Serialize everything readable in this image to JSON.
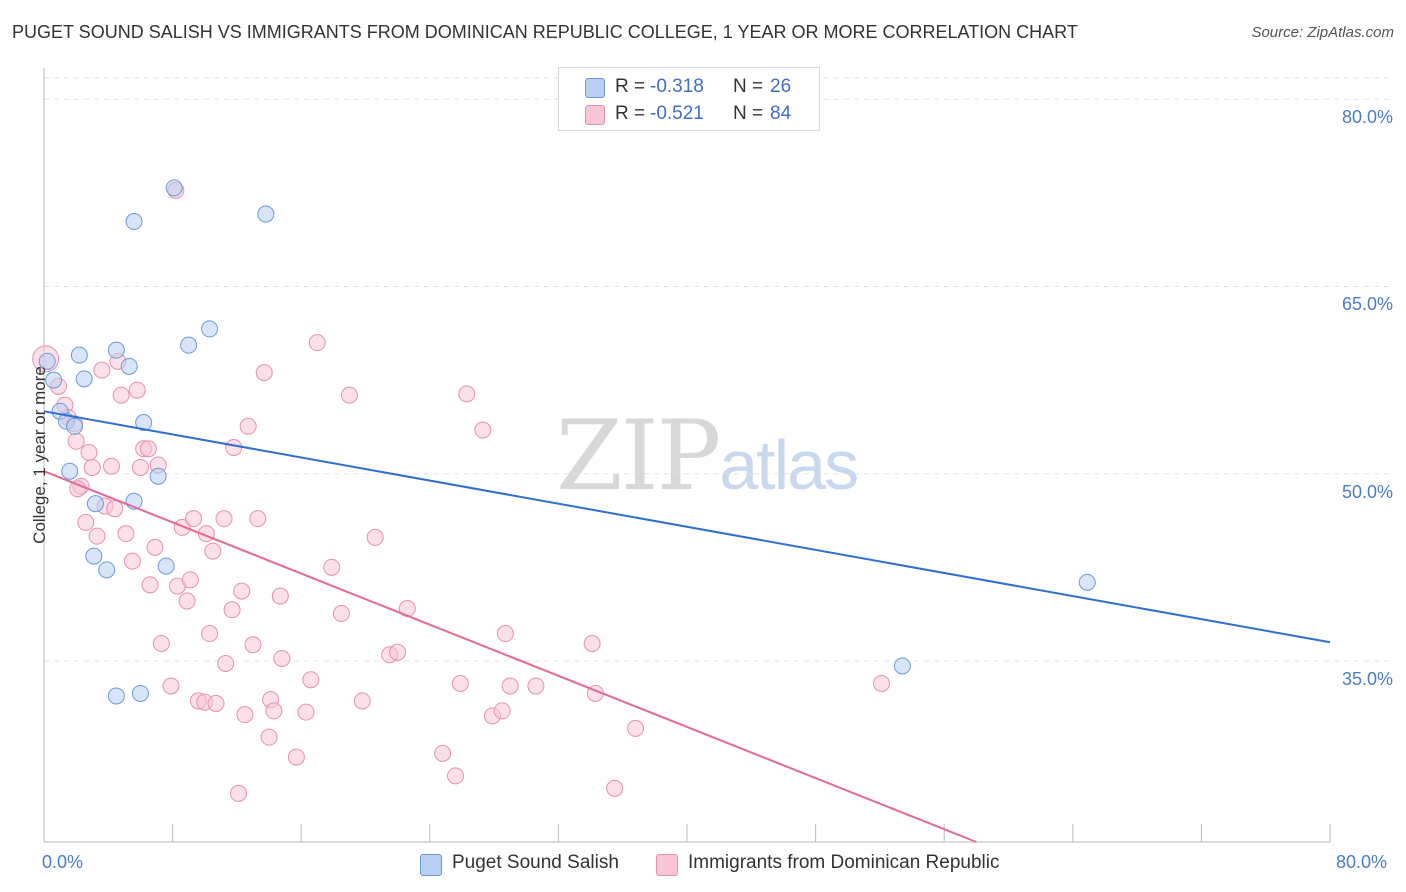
{
  "title": "PUGET SOUND SALISH VS IMMIGRANTS FROM DOMINICAN REPUBLIC COLLEGE, 1 YEAR OR MORE CORRELATION CHART",
  "source": "Source: ZipAtlas.com",
  "watermark": {
    "zip": "ZIP",
    "atlas": "atlas"
  },
  "colors": {
    "blue_fill": "#b8d0f3",
    "blue_stroke": "#6b9ad8",
    "blue_line": "#2f6fd0",
    "pink_fill": "#f8c6d6",
    "pink_stroke": "#e690b0",
    "pink_line": "#e06a98",
    "grid": "#e3e3e3",
    "axis_text": "#4a7cc7"
  },
  "legend": {
    "rows": [
      {
        "r_label": "R = ",
        "r_value": "-0.318",
        "n_label": "N = ",
        "n_value": "26"
      },
      {
        "r_label": "R = ",
        "r_value": "-0.521",
        "n_label": "N = ",
        "n_value": "84"
      }
    ]
  },
  "chart_data": {
    "type": "scatter",
    "title": "PUGET SOUND SALISH VS IMMIGRANTS FROM DOMINICAN REPUBLIC COLLEGE, 1 YEAR OR MORE CORRELATION CHART",
    "xlabel": "",
    "ylabel": "College, 1 year or more",
    "xlim": [
      0,
      80
    ],
    "ylim": [
      20.5,
      82.5
    ],
    "x_tick_labels": [
      "0.0%",
      "80.0%"
    ],
    "y_ticks": [
      35,
      50,
      65,
      80
    ],
    "y_tick_labels": [
      "35.0%",
      "50.0%",
      "65.0%",
      "80.0%"
    ],
    "legend_position": "top-center",
    "series": [
      {
        "name": "Puget Sound Salish",
        "color": "#6b9ad8",
        "r": -0.318,
        "n": 26,
        "trend": {
          "x0": 0,
          "y0": 55.0,
          "x1": 80,
          "y1": 36.5
        },
        "points": [
          [
            0.2,
            59.0
          ],
          [
            0.6,
            57.5
          ],
          [
            1.0,
            55.0
          ],
          [
            1.4,
            54.2
          ],
          [
            1.9,
            53.8
          ],
          [
            2.2,
            59.5
          ],
          [
            2.5,
            57.6
          ],
          [
            1.6,
            50.2
          ],
          [
            3.1,
            43.4
          ],
          [
            3.2,
            47.6
          ],
          [
            3.9,
            42.3
          ],
          [
            4.5,
            32.2
          ],
          [
            4.5,
            59.9
          ],
          [
            5.3,
            58.6
          ],
          [
            5.6,
            70.2
          ],
          [
            5.6,
            47.8
          ],
          [
            6.0,
            32.4
          ],
          [
            6.2,
            54.1
          ],
          [
            7.1,
            49.8
          ],
          [
            7.6,
            42.6
          ],
          [
            8.1,
            72.9
          ],
          [
            9.0,
            60.3
          ],
          [
            10.3,
            61.6
          ],
          [
            13.8,
            70.8
          ],
          [
            64.9,
            41.3
          ],
          [
            53.4,
            34.6
          ]
        ]
      },
      {
        "name": "Immigrants from Dominican Republic",
        "color": "#e690b0",
        "r": -0.521,
        "n": 84,
        "trend": {
          "x0": 0,
          "y0": 50.2,
          "x1": 58,
          "y1": 20.5
        },
        "points": [
          [
            0.1,
            59.2
          ],
          [
            0.9,
            57.0
          ],
          [
            1.3,
            55.5
          ],
          [
            1.5,
            54.5
          ],
          [
            1.9,
            54.0
          ],
          [
            2.0,
            52.6
          ],
          [
            2.3,
            49.0
          ],
          [
            2.6,
            46.1
          ],
          [
            2.8,
            51.7
          ],
          [
            3.0,
            50.5
          ],
          [
            3.3,
            45.0
          ],
          [
            3.6,
            58.3
          ],
          [
            3.8,
            47.4
          ],
          [
            4.2,
            50.6
          ],
          [
            4.4,
            47.2
          ],
          [
            4.6,
            59.0
          ],
          [
            4.8,
            56.3
          ],
          [
            5.1,
            45.2
          ],
          [
            5.5,
            43.0
          ],
          [
            5.8,
            56.7
          ],
          [
            6.0,
            50.5
          ],
          [
            6.2,
            52.0
          ],
          [
            6.6,
            41.1
          ],
          [
            6.9,
            44.1
          ],
          [
            7.1,
            50.7
          ],
          [
            7.3,
            36.4
          ],
          [
            7.9,
            33.0
          ],
          [
            8.2,
            72.7
          ],
          [
            8.3,
            41.0
          ],
          [
            8.6,
            45.7
          ],
          [
            8.9,
            39.8
          ],
          [
            9.1,
            41.5
          ],
          [
            9.3,
            46.4
          ],
          [
            9.6,
            31.8
          ],
          [
            10.0,
            31.7
          ],
          [
            10.1,
            45.2
          ],
          [
            10.3,
            37.2
          ],
          [
            10.5,
            43.8
          ],
          [
            10.7,
            31.6
          ],
          [
            11.2,
            46.4
          ],
          [
            11.3,
            34.8
          ],
          [
            11.7,
            39.1
          ],
          [
            11.8,
            52.1
          ],
          [
            12.1,
            24.4
          ],
          [
            12.3,
            40.6
          ],
          [
            12.5,
            30.7
          ],
          [
            12.7,
            53.8
          ],
          [
            13.0,
            36.3
          ],
          [
            13.3,
            46.4
          ],
          [
            13.7,
            58.1
          ],
          [
            14.1,
            31.9
          ],
          [
            14.3,
            31.0
          ],
          [
            14.7,
            40.2
          ],
          [
            14.8,
            35.2
          ],
          [
            15.7,
            27.3
          ],
          [
            16.3,
            30.9
          ],
          [
            16.6,
            33.5
          ],
          [
            17.0,
            60.5
          ],
          [
            17.9,
            42.5
          ],
          [
            18.5,
            38.8
          ],
          [
            19.0,
            56.3
          ],
          [
            19.8,
            31.8
          ],
          [
            20.6,
            44.9
          ],
          [
            21.5,
            35.5
          ],
          [
            22.0,
            35.7
          ],
          [
            22.6,
            39.2
          ],
          [
            24.8,
            27.6
          ],
          [
            25.6,
            25.8
          ],
          [
            25.9,
            33.2
          ],
          [
            26.3,
            56.4
          ],
          [
            27.3,
            53.5
          ],
          [
            27.9,
            30.6
          ],
          [
            28.5,
            31.0
          ],
          [
            28.7,
            37.2
          ],
          [
            29.0,
            33.0
          ],
          [
            30.6,
            33.0
          ],
          [
            34.1,
            36.4
          ],
          [
            34.3,
            32.4
          ],
          [
            35.5,
            24.8
          ],
          [
            36.8,
            29.6
          ],
          [
            52.1,
            33.2
          ],
          [
            2.1,
            48.8
          ],
          [
            6.5,
            52.0
          ],
          [
            14.0,
            28.9
          ]
        ]
      }
    ]
  }
}
